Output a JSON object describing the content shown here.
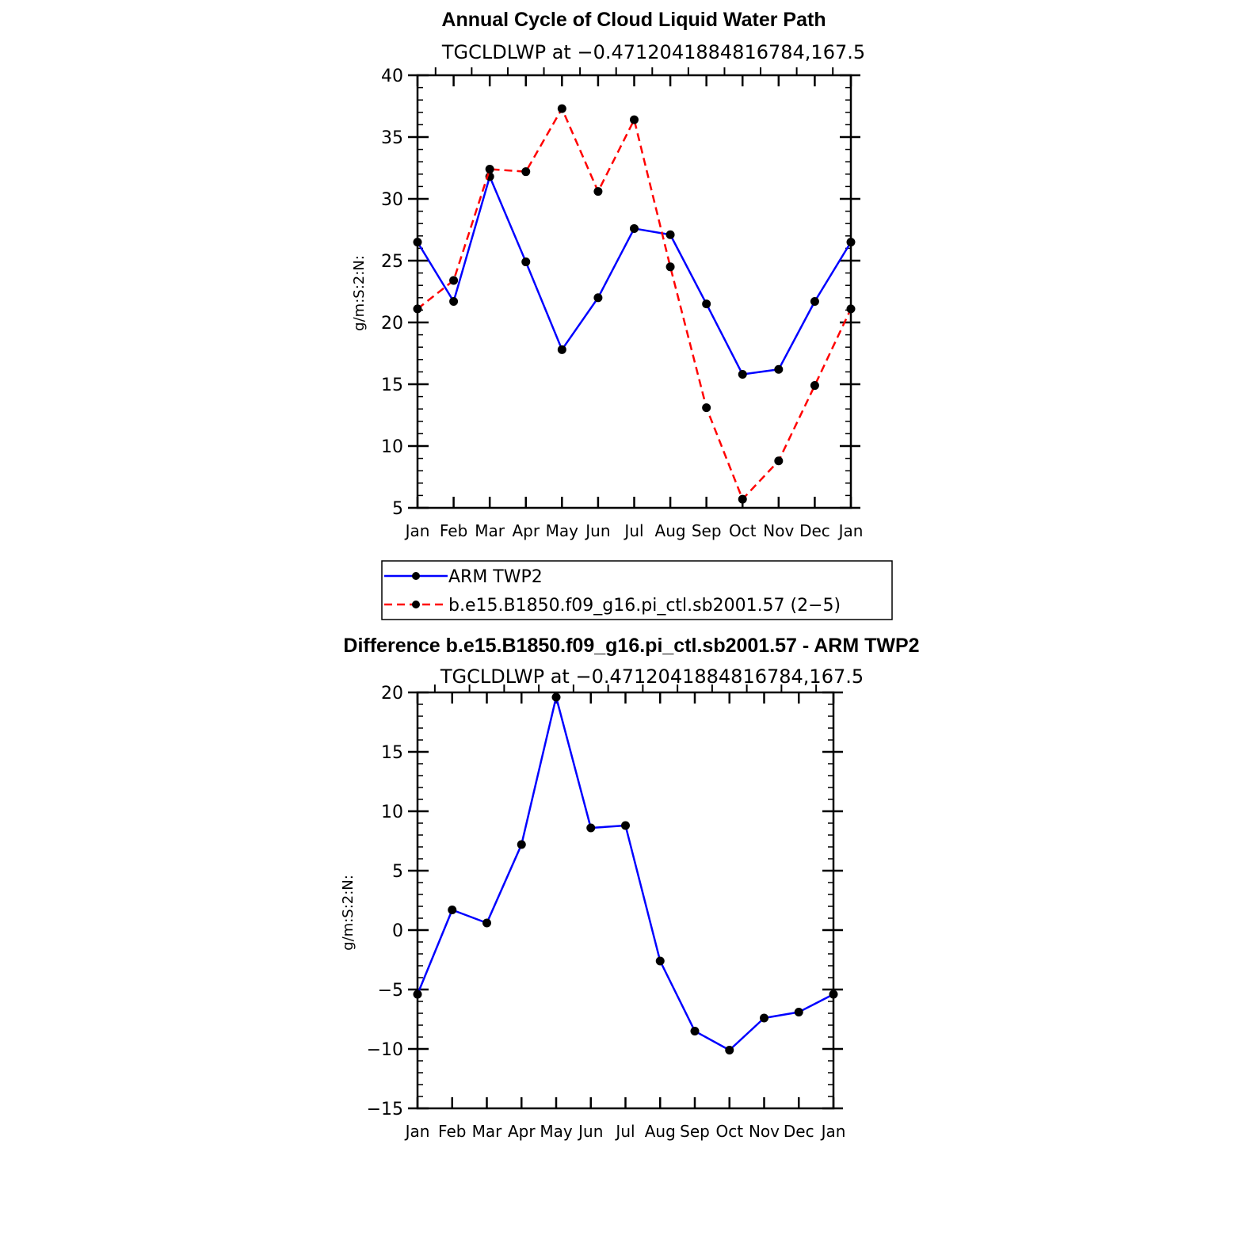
{
  "chart_data": [
    {
      "type": "line",
      "title": "Annual Cycle of Cloud Liquid Water Path",
      "subtitle": "TGCLDLWP at −0.4712041884816784,167.5",
      "ylabel": "g/m:S:2:N:",
      "ylim": [
        5,
        40
      ],
      "yticks": [
        5,
        10,
        15,
        20,
        25,
        30,
        35,
        40
      ],
      "categories": [
        "Jan",
        "Feb",
        "Mar",
        "Apr",
        "May",
        "Jun",
        "Jul",
        "Aug",
        "Sep",
        "Oct",
        "Nov",
        "Dec",
        "Jan"
      ],
      "series": [
        {
          "name": "ARM TWP2",
          "color": "#0000ff",
          "dashed": false,
          "values": [
            26.5,
            21.7,
            31.8,
            24.9,
            17.8,
            22.0,
            27.6,
            27.1,
            21.5,
            15.8,
            16.2,
            21.7,
            26.5
          ]
        },
        {
          "name": "b.e15.B1850.f09_g16.pi_ctl.sb2001.57 (2−5)",
          "color": "#ff0000",
          "dashed": true,
          "values": [
            21.1,
            23.4,
            32.4,
            32.2,
            37.3,
            30.6,
            36.4,
            24.5,
            13.1,
            5.7,
            8.8,
            14.9,
            21.1
          ]
        }
      ],
      "legend": "bottom"
    },
    {
      "type": "line",
      "title": "Difference b.e15.B1850.f09_g16.pi_ctl.sb2001.57 - ARM TWP2",
      "subtitle": "TGCLDLWP at −0.4712041884816784,167.5",
      "ylabel": "g/m:S:2:N:",
      "ylim": [
        -15,
        20
      ],
      "yticks": [
        -15,
        -10,
        -5,
        0,
        5,
        10,
        15,
        20
      ],
      "ytick_labels": [
        "−15",
        "−10",
        "−5",
        "0",
        "5",
        "10",
        "15",
        "20"
      ],
      "categories": [
        "Jan",
        "Feb",
        "Mar",
        "Apr",
        "May",
        "Jun",
        "Jul",
        "Aug",
        "Sep",
        "Oct",
        "Nov",
        "Dec",
        "Jan"
      ],
      "series": [
        {
          "color": "#0000ff",
          "dashed": false,
          "values": [
            -5.4,
            1.7,
            0.6,
            7.2,
            19.6,
            8.6,
            8.8,
            -2.6,
            -8.5,
            -10.1,
            -7.4,
            -6.9,
            -5.4
          ]
        }
      ]
    }
  ]
}
